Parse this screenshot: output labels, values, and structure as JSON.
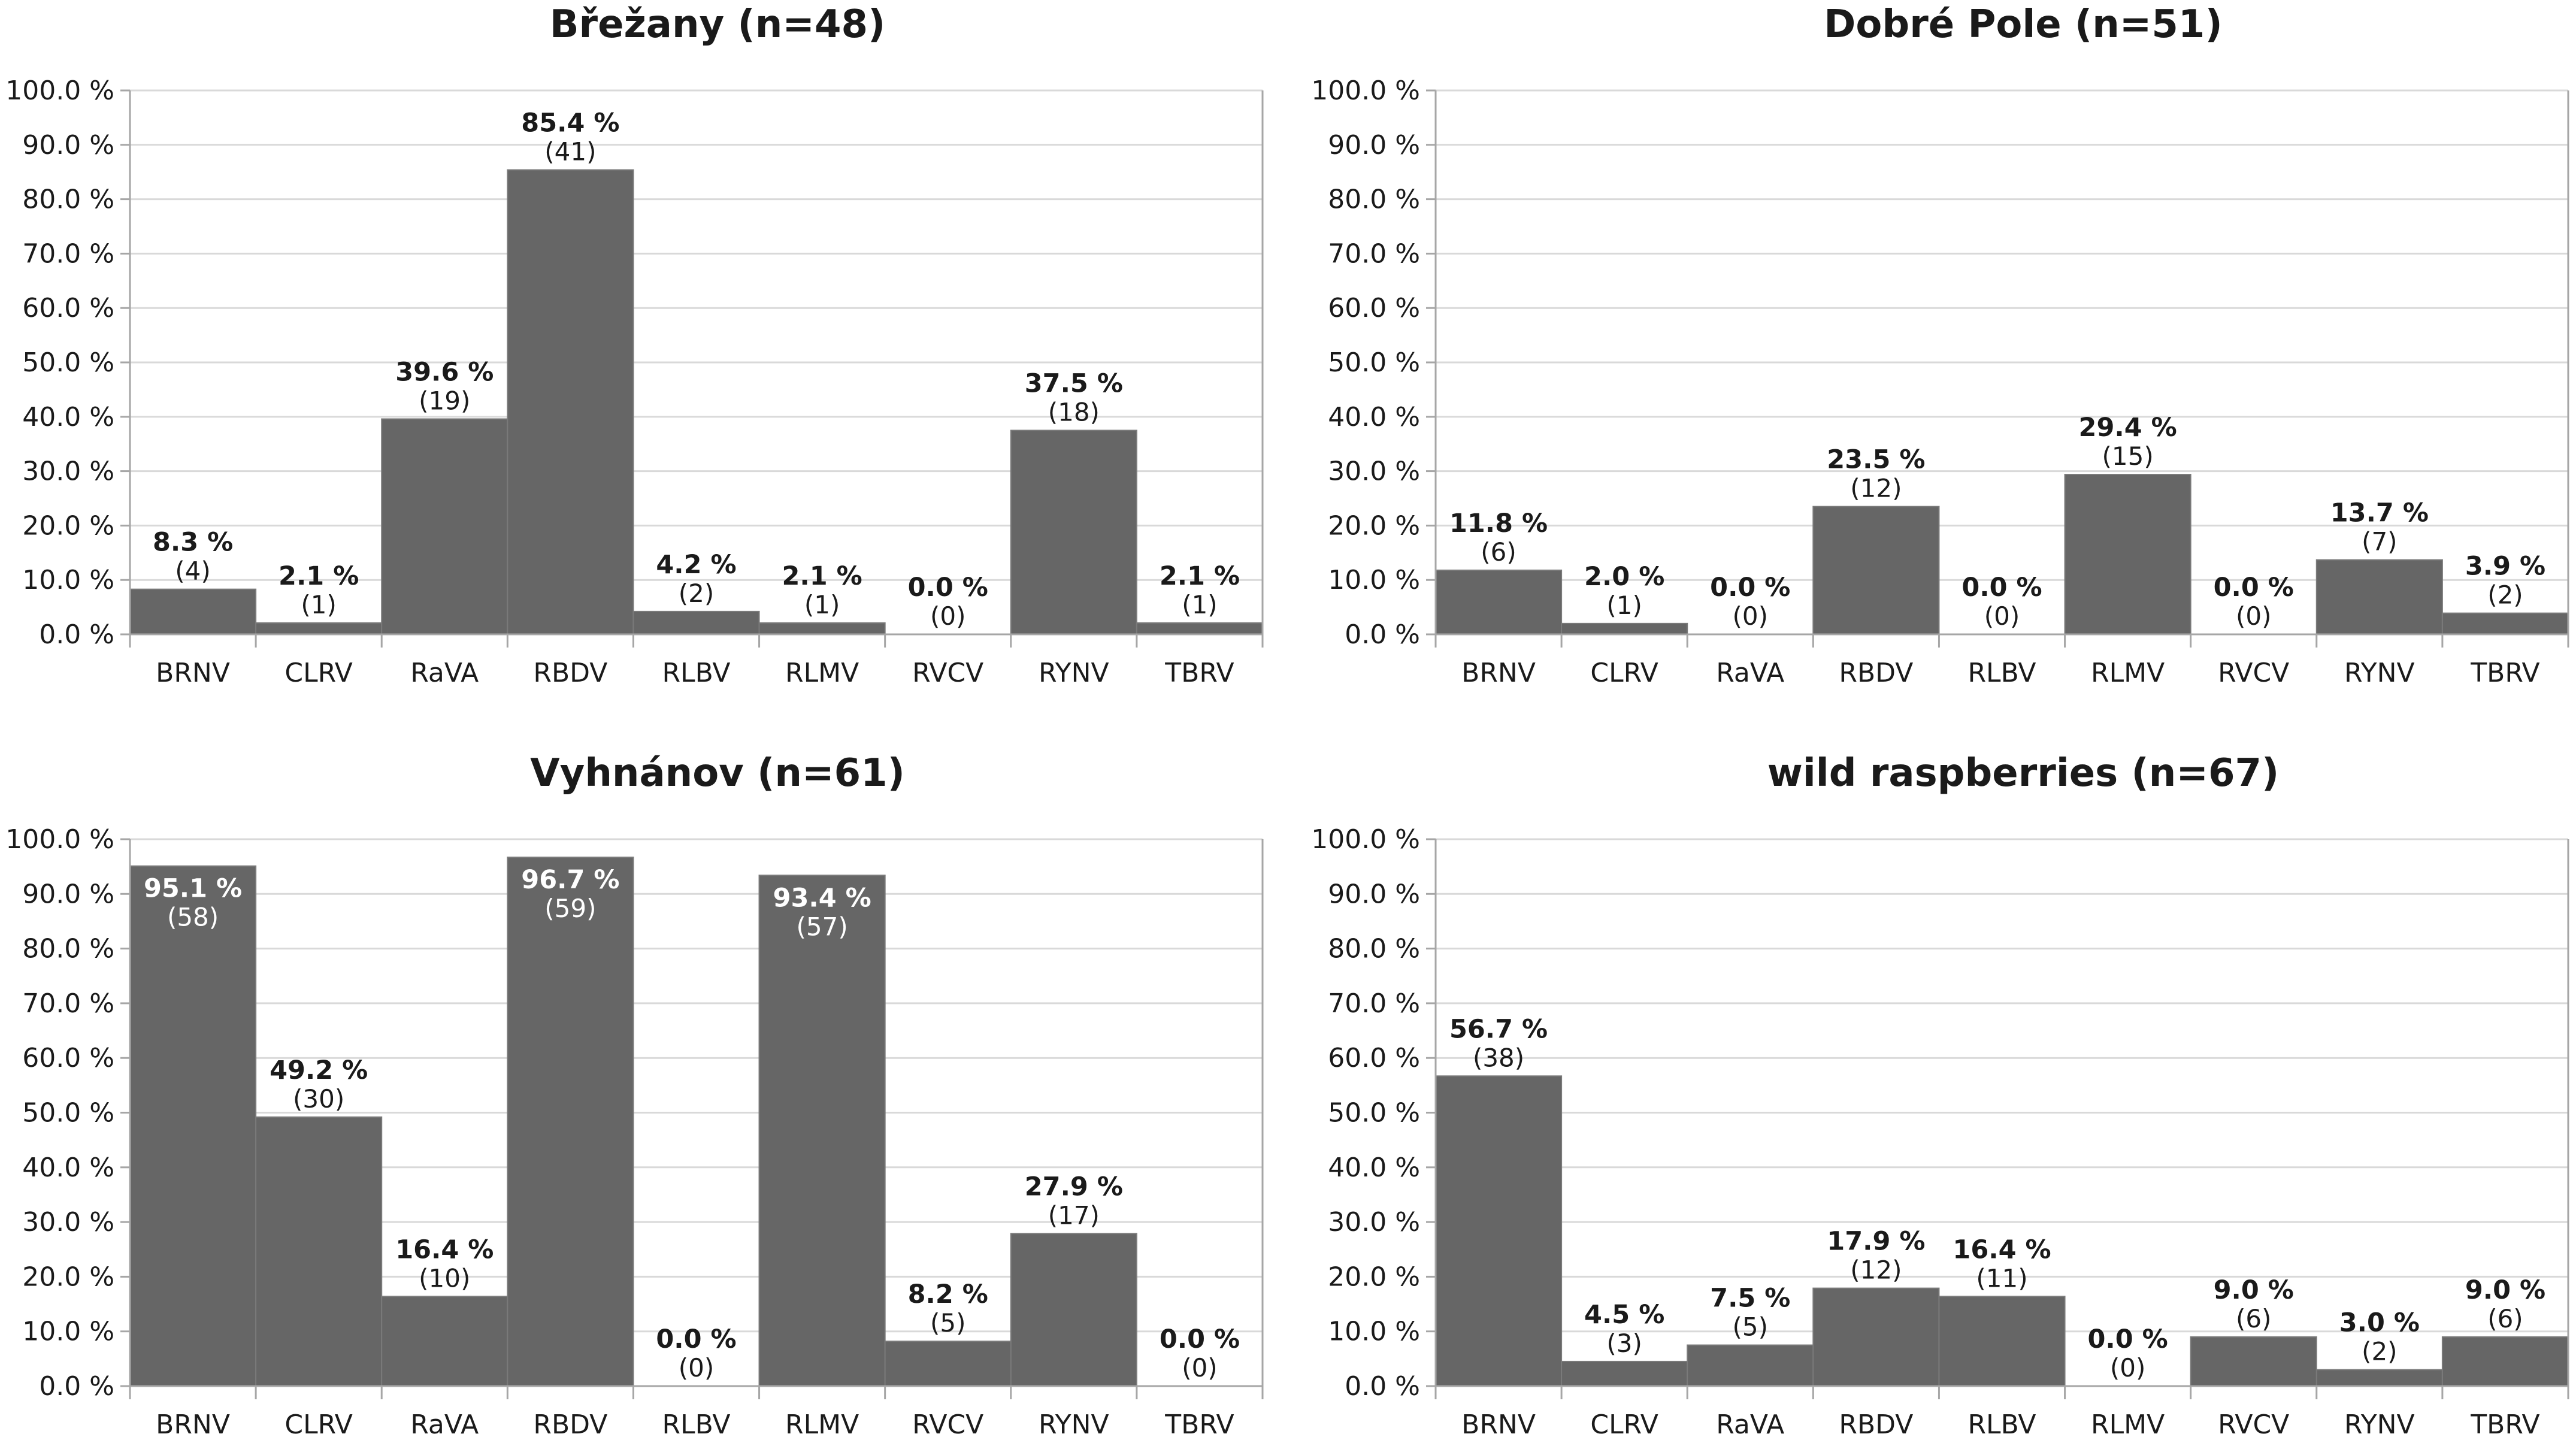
{
  "chart_data": [
    {
      "type": "bar",
      "title": "Břežany (n=48)",
      "categories": [
        "BRNV",
        "CLRV",
        "RaVA",
        "RBDV",
        "RLBV",
        "RLMV",
        "RVCV",
        "RYNV",
        "TBRV"
      ],
      "values": [
        8.3,
        2.1,
        39.6,
        85.4,
        4.2,
        2.1,
        0.0,
        37.5,
        2.1
      ],
      "value_labels": [
        "8.3 %",
        "2.1 %",
        "39.6 %",
        "85.4 %",
        "4.2 %",
        "2.1 %",
        "0.0 %",
        "37.5 %",
        "2.1 %"
      ],
      "count_labels": [
        "(4)",
        "(1)",
        "(19)",
        "(41)",
        "(2)",
        "(1)",
        "(0)",
        "(18)",
        "(1)"
      ],
      "ylim": [
        0,
        100
      ],
      "yticks": [
        "0.0 %",
        "10.0 %",
        "20.0 %",
        "30.0 %",
        "40.0 %",
        "50.0 %",
        "60.0 %",
        "70.0 %",
        "80.0 %",
        "90.0 %",
        "100.0 %"
      ],
      "grid": true,
      "color": "#666666"
    },
    {
      "type": "bar",
      "title": "Dobré Pole (n=51)",
      "categories": [
        "BRNV",
        "CLRV",
        "RaVA",
        "RBDV",
        "RLBV",
        "RLMV",
        "RVCV",
        "RYNV",
        "TBRV"
      ],
      "values": [
        11.8,
        2.0,
        0.0,
        23.5,
        0.0,
        29.4,
        0.0,
        13.7,
        3.9
      ],
      "value_labels": [
        "11.8 %",
        "2.0 %",
        "0.0 %",
        "23.5 %",
        "0.0 %",
        "29.4 %",
        "0.0 %",
        "13.7 %",
        "3.9 %"
      ],
      "count_labels": [
        "(6)",
        "(1)",
        "(0)",
        "(12)",
        "(0)",
        "(15)",
        "(0)",
        "(7)",
        "(2)"
      ],
      "ylim": [
        0,
        100
      ],
      "yticks": [
        "0.0 %",
        "10.0 %",
        "20.0 %",
        "30.0 %",
        "40.0 %",
        "50.0 %",
        "60.0 %",
        "70.0 %",
        "80.0 %",
        "90.0 %",
        "100.0 %"
      ],
      "grid": true,
      "color": "#666666"
    },
    {
      "type": "bar",
      "title": "Vyhnánov (n=61)",
      "categories": [
        "BRNV",
        "CLRV",
        "RaVA",
        "RBDV",
        "RLBV",
        "RLMV",
        "RVCV",
        "RYNV",
        "TBRV"
      ],
      "values": [
        95.1,
        49.2,
        16.4,
        96.7,
        0.0,
        93.4,
        8.2,
        27.9,
        0.0
      ],
      "value_labels": [
        "95.1 %",
        "49.2 %",
        "16.4 %",
        "96.7 %",
        "0.0 %",
        "93.4 %",
        "8.2 %",
        "27.9 %",
        "0.0 %"
      ],
      "count_labels": [
        "(58)",
        "(30)",
        "(10)",
        "(59)",
        "(0)",
        "(57)",
        "(5)",
        "(17)",
        "(0)"
      ],
      "ylim": [
        0,
        100
      ],
      "yticks": [
        "0.0 %",
        "10.0 %",
        "20.0 %",
        "30.0 %",
        "40.0 %",
        "50.0 %",
        "60.0 %",
        "70.0 %",
        "80.0 %",
        "90.0 %",
        "100.0 %"
      ],
      "grid": true,
      "color": "#666666"
    },
    {
      "type": "bar",
      "title": "wild raspberries (n=67)",
      "categories": [
        "BRNV",
        "CLRV",
        "RaVA",
        "RBDV",
        "RLBV",
        "RLMV",
        "RVCV",
        "RYNV",
        "TBRV"
      ],
      "values": [
        56.7,
        4.5,
        7.5,
        17.9,
        16.4,
        0.0,
        9.0,
        3.0,
        9.0
      ],
      "value_labels": [
        "56.7 %",
        "4.5 %",
        "7.5 %",
        "17.9 %",
        "16.4 %",
        "0.0 %",
        "9.0 %",
        "3.0 %",
        "9.0 %"
      ],
      "count_labels": [
        "(38)",
        "(3)",
        "(5)",
        "(12)",
        "(11)",
        "(0)",
        "(6)",
        "(2)",
        "(6)"
      ],
      "ylim": [
        0,
        100
      ],
      "yticks": [
        "0.0 %",
        "10.0 %",
        "20.0 %",
        "30.0 %",
        "40.0 %",
        "50.0 %",
        "60.0 %",
        "70.0 %",
        "80.0 %",
        "90.0 %",
        "100.0 %"
      ],
      "grid": true,
      "color": "#666666"
    }
  ]
}
